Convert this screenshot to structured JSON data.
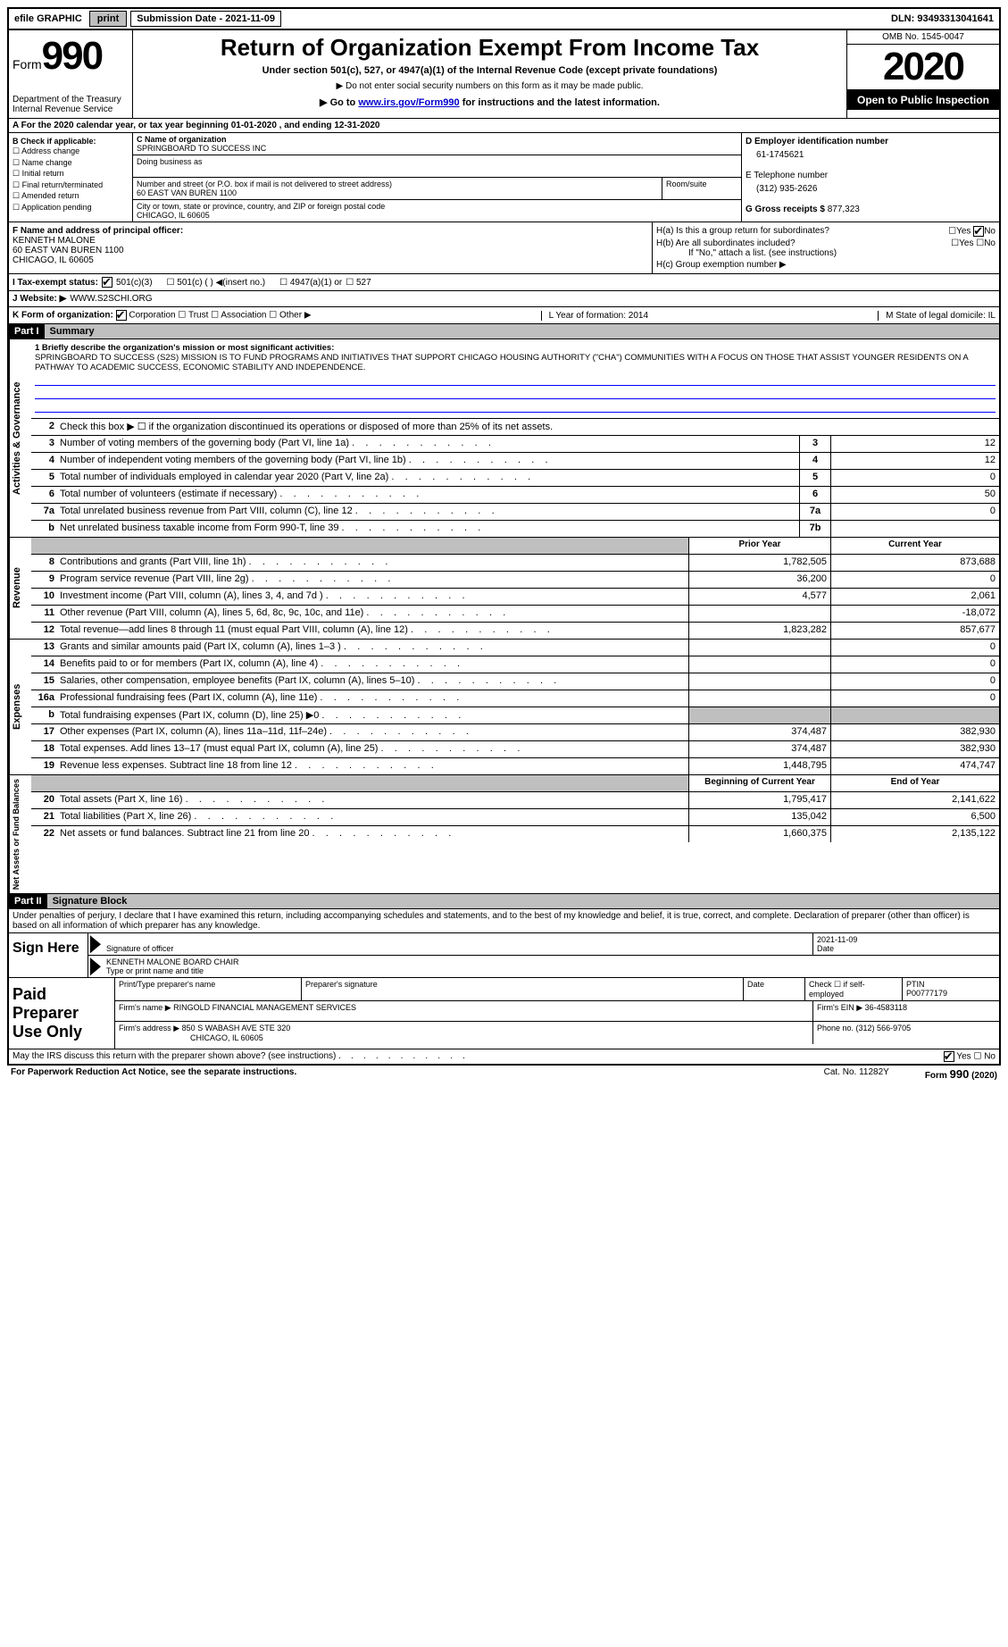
{
  "topbar": {
    "efile": "efile GRAPHIC",
    "print": "print",
    "submission_label": "Submission Date - ",
    "submission_date": "2021-11-09",
    "dln": "DLN: 93493313041641"
  },
  "header": {
    "form": "Form",
    "form_num": "990",
    "dept": "Department of the Treasury\nInternal Revenue Service",
    "title": "Return of Organization Exempt From Income Tax",
    "subtitle": "Under section 501(c), 527, or 4947(a)(1) of the Internal Revenue Code (except private foundations)",
    "line1": "▶ Do not enter social security numbers on this form as it may be made public.",
    "line2a": "▶ Go to ",
    "line2_link": "www.irs.gov/Form990",
    "line2b": " for instructions and the latest information.",
    "omb": "OMB No. 1545-0047",
    "year": "2020",
    "open": "Open to Public Inspection"
  },
  "rowA": "A For the 2020 calendar year, or tax year beginning 01-01-2020   , and ending 12-31-2020",
  "colB": {
    "title": "B Check if applicable:",
    "items": [
      "Address change",
      "Name change",
      "Initial return",
      "Final return/terminated",
      "Amended return",
      "Application pending"
    ]
  },
  "colC": {
    "name_label": "C Name of organization",
    "name": "SPRINGBOARD TO SUCCESS INC",
    "dba_label": "Doing business as",
    "addr_label": "Number and street (or P.O. box if mail is not delivered to street address)",
    "room_label": "Room/suite",
    "addr": "60 EAST VAN BUREN 1100",
    "city_label": "City or town, state or province, country, and ZIP or foreign postal code",
    "city": "CHICAGO, IL  60605"
  },
  "colD": {
    "ein_label": "D Employer identification number",
    "ein": "61-1745621",
    "phone_label": "E Telephone number",
    "phone": "(312) 935-2626",
    "gross_label": "G Gross receipts $ ",
    "gross": "877,323"
  },
  "sectionF": {
    "label": "F  Name and address of principal officer:",
    "name": "KENNETH MALONE",
    "addr1": "60 EAST VAN BUREN 1100",
    "addr2": "CHICAGO, IL  60605"
  },
  "sectionH": {
    "ha": "H(a)  Is this a group return for subordinates?",
    "hb": "H(b)  Are all subordinates included?",
    "hb_note": "If \"No,\" attach a list. (see instructions)",
    "hc": "H(c)  Group exemption number ▶",
    "yes": "Yes",
    "no": "No"
  },
  "rowI": {
    "label": "I    Tax-exempt status:",
    "opts": [
      "501(c)(3)",
      "501(c) (  ) ◀(insert no.)",
      "4947(a)(1) or",
      "527"
    ]
  },
  "rowJ": {
    "label": "J   Website: ▶",
    "value": " WWW.S2SCHI.ORG"
  },
  "rowK": {
    "label": "K Form of organization:",
    "opts": [
      "Corporation",
      "Trust",
      "Association",
      "Other ▶"
    ]
  },
  "rowL": {
    "l": "L Year of formation: 2014",
    "m": "M State of legal domicile: IL"
  },
  "part1": {
    "header": "Part I",
    "title": "Summary",
    "line1_label": "1  Briefly describe the organization's mission or most significant activities:",
    "mission": "SPRINGBOARD TO SUCCESS (S2S) MISSION IS TO FUND PROGRAMS AND INITIATIVES THAT SUPPORT CHICAGO HOUSING AUTHORITY (\"CHA\") COMMUNITIES WITH A FOCUS ON THOSE THAT ASSIST YOUNGER RESIDENTS ON A PATHWAY TO ACADEMIC SUCCESS, ECONOMIC STABILITY AND INDEPENDENCE.",
    "line2": "Check this box ▶ ☐ if the organization discontinued its operations or disposed of more than 25% of its net assets."
  },
  "vert_labels": {
    "gov": "Activities & Governance",
    "rev": "Revenue",
    "exp": "Expenses",
    "net": "Net Assets or Fund Balances"
  },
  "gov_rows": [
    {
      "n": "3",
      "label": "Number of voting members of the governing body (Part VI, line 1a)",
      "box": "3",
      "val": "12"
    },
    {
      "n": "4",
      "label": "Number of independent voting members of the governing body (Part VI, line 1b)",
      "box": "4",
      "val": "12"
    },
    {
      "n": "5",
      "label": "Total number of individuals employed in calendar year 2020 (Part V, line 2a)",
      "box": "5",
      "val": "0"
    },
    {
      "n": "6",
      "label": "Total number of volunteers (estimate if necessary)",
      "box": "6",
      "val": "50"
    },
    {
      "n": "7a",
      "label": "Total unrelated business revenue from Part VIII, column (C), line 12",
      "box": "7a",
      "val": "0"
    },
    {
      "n": "b",
      "label": "Net unrelated business taxable income from Form 990-T, line 39",
      "box": "7b",
      "val": ""
    }
  ],
  "col_headers": {
    "prior": "Prior Year",
    "current": "Current Year"
  },
  "rev_rows": [
    {
      "n": "8",
      "label": "Contributions and grants (Part VIII, line 1h)",
      "p": "1,782,505",
      "c": "873,688"
    },
    {
      "n": "9",
      "label": "Program service revenue (Part VIII, line 2g)",
      "p": "36,200",
      "c": "0"
    },
    {
      "n": "10",
      "label": "Investment income (Part VIII, column (A), lines 3, 4, and 7d )",
      "p": "4,577",
      "c": "2,061"
    },
    {
      "n": "11",
      "label": "Other revenue (Part VIII, column (A), lines 5, 6d, 8c, 9c, 10c, and 11e)",
      "p": "",
      "c": "-18,072"
    },
    {
      "n": "12",
      "label": "Total revenue—add lines 8 through 11 (must equal Part VIII, column (A), line 12)",
      "p": "1,823,282",
      "c": "857,677"
    }
  ],
  "exp_rows": [
    {
      "n": "13",
      "label": "Grants and similar amounts paid (Part IX, column (A), lines 1–3 )",
      "p": "",
      "c": "0"
    },
    {
      "n": "14",
      "label": "Benefits paid to or for members (Part IX, column (A), line 4)",
      "p": "",
      "c": "0"
    },
    {
      "n": "15",
      "label": "Salaries, other compensation, employee benefits (Part IX, column (A), lines 5–10)",
      "p": "",
      "c": "0"
    },
    {
      "n": "16a",
      "label": "Professional fundraising fees (Part IX, column (A), line 11e)",
      "p": "",
      "c": "0"
    },
    {
      "n": "b",
      "label": "Total fundraising expenses (Part IX, column (D), line 25) ▶0",
      "p": "GRAY",
      "c": "GRAY"
    },
    {
      "n": "17",
      "label": "Other expenses (Part IX, column (A), lines 11a–11d, 11f–24e)",
      "p": "374,487",
      "c": "382,930"
    },
    {
      "n": "18",
      "label": "Total expenses. Add lines 13–17 (must equal Part IX, column (A), line 25)",
      "p": "374,487",
      "c": "382,930"
    },
    {
      "n": "19",
      "label": "Revenue less expenses. Subtract line 18 from line 12",
      "p": "1,448,795",
      "c": "474,747"
    }
  ],
  "net_headers": {
    "begin": "Beginning of Current Year",
    "end": "End of Year"
  },
  "net_rows": [
    {
      "n": "20",
      "label": "Total assets (Part X, line 16)",
      "p": "1,795,417",
      "c": "2,141,622"
    },
    {
      "n": "21",
      "label": "Total liabilities (Part X, line 26)",
      "p": "135,042",
      "c": "6,500"
    },
    {
      "n": "22",
      "label": "Net assets or fund balances. Subtract line 21 from line 20",
      "p": "1,660,375",
      "c": "2,135,122"
    }
  ],
  "part2": {
    "header": "Part II",
    "title": "Signature Block",
    "penalty": "Under penalties of perjury, I declare that I have examined this return, including accompanying schedules and statements, and to the best of my knowledge and belief, it is true, correct, and complete. Declaration of preparer (other than officer) is based on all information of which preparer has any knowledge."
  },
  "sign": {
    "here": "Sign Here",
    "sig_label": "Signature of officer",
    "date": "2021-11-09",
    "date_label": "Date",
    "name": "KENNETH MALONE BOARD CHAIR",
    "name_label": "Type or print name and title"
  },
  "prep": {
    "title": "Paid Preparer Use Only",
    "print_label": "Print/Type preparer's name",
    "sig_label": "Preparer's signature",
    "date_label": "Date",
    "check_label": "Check ☐ if self-employed",
    "ptin_label": "PTIN",
    "ptin": "P00777179",
    "firm_label": "Firm's name      ▶",
    "firm": "RINGOLD FINANCIAL MANAGEMENT SERVICES",
    "ein_label": "Firm's EIN ▶",
    "ein": "36-4583118",
    "addr_label": "Firm's address ▶",
    "addr1": "850 S WABASH AVE STE 320",
    "addr2": "CHICAGO, IL  60605",
    "phone_label": "Phone no. ",
    "phone": "(312) 566-9705"
  },
  "discuss": {
    "q": "May the IRS discuss this return with the preparer shown above? (see instructions)",
    "yes": "Yes",
    "no": "No"
  },
  "footer": {
    "left": "For Paperwork Reduction Act Notice, see the separate instructions.",
    "mid": "Cat. No. 11282Y",
    "right": "Form 990 (2020)"
  }
}
